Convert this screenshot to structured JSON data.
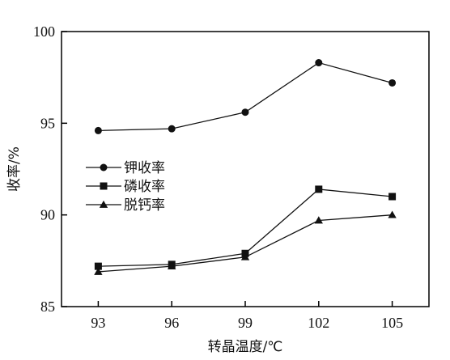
{
  "chart_data": {
    "type": "line",
    "x": [
      93,
      96,
      99,
      102,
      105
    ],
    "x_tick_labels": [
      "93",
      "96",
      "99",
      "102",
      "105"
    ],
    "xlim": [
      91.5,
      106.5
    ],
    "ylim": [
      85,
      100
    ],
    "y_ticks": [
      85,
      90,
      95,
      100
    ],
    "y_tick_labels": [
      "85",
      "90",
      "95",
      "100"
    ],
    "xlabel": "转晶温度/℃",
    "ylabel": "收率/%",
    "grid": false,
    "legend_position": "left-middle",
    "series": [
      {
        "name": "钾收率",
        "marker": "circle",
        "values": [
          94.6,
          94.7,
          95.6,
          98.3,
          97.2
        ]
      },
      {
        "name": "磷收率",
        "marker": "square",
        "values": [
          87.2,
          87.3,
          87.9,
          91.4,
          91.0
        ]
      },
      {
        "name": "脱钙率",
        "marker": "triangle",
        "values": [
          86.9,
          87.2,
          87.7,
          89.7,
          90.0
        ]
      }
    ]
  }
}
